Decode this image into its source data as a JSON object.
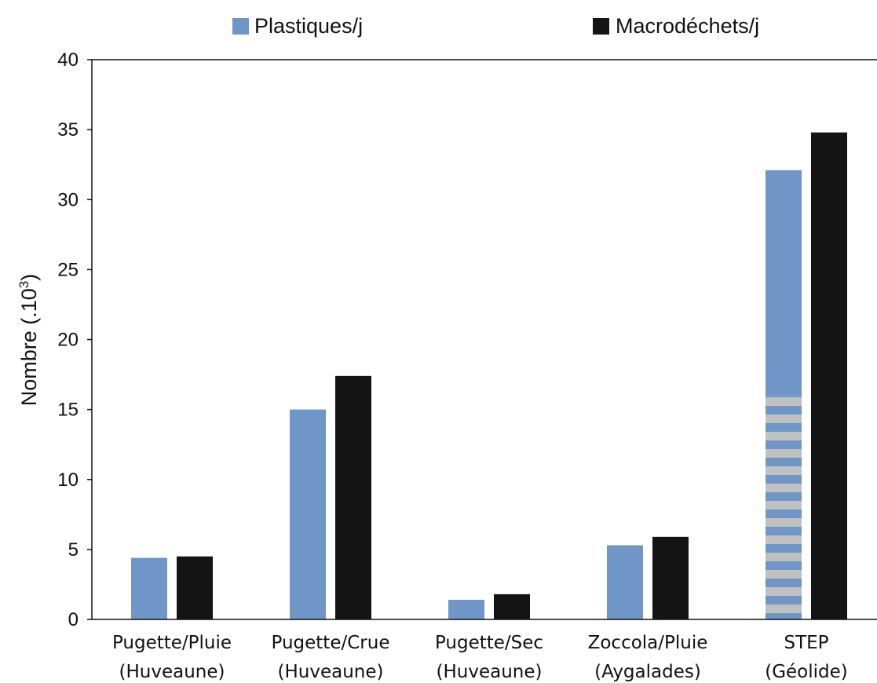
{
  "chart_data": {
    "type": "bar",
    "categories": [
      [
        "Pugette/Pluie",
        "(Huveaune)"
      ],
      [
        "Pugette/Crue",
        "(Huveaune)"
      ],
      [
        "Pugette/Sec",
        "(Huveaune)"
      ],
      [
        "Zoccola/Pluie",
        "(Aygalades)"
      ],
      [
        "STEP",
        "(Géolide)"
      ]
    ],
    "series": [
      {
        "name": "Plastiques/j",
        "color": "#7096c8",
        "values": [
          4.4,
          15.0,
          1.4,
          5.3,
          32.1
        ]
      },
      {
        "name": "Macrodéchets/j",
        "color": "#141414",
        "values": [
          4.5,
          17.4,
          1.8,
          5.9,
          34.8
        ]
      }
    ],
    "stacked_segment": {
      "category_index": 4,
      "series_index": 0,
      "lower_value": 16.0,
      "pattern": "blue-grey horizontal stripes",
      "stripe_color": "#c0c0c0"
    },
    "ylabel_main": "Nombre (.10",
    "ylabel_sup": "3",
    "ylabel_end": ")",
    "xlabel": "",
    "ylim": [
      0,
      40
    ],
    "yticks": [
      "0",
      "5",
      "10",
      "15",
      "20",
      "25",
      "30",
      "35",
      "40"
    ],
    "legend_position": "top",
    "grid": false
  }
}
